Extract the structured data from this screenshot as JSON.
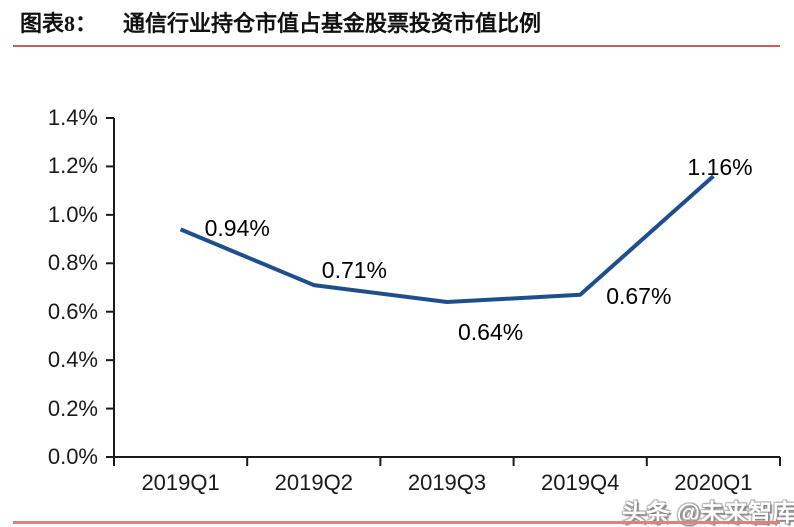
{
  "header": {
    "label": "图表8：",
    "title": "通信行业持仓市值占基金股票投资市值比例",
    "underline_color": "#C4615C"
  },
  "watermark": {
    "text": "头条 @未来智库",
    "color": "#FFFFFF"
  },
  "footer": {
    "bar_color": "#DD837C"
  },
  "chart_data": {
    "type": "line",
    "title": "通信行业持仓市值占基金股票投资市值比例",
    "categories": [
      "2019Q1",
      "2019Q2",
      "2019Q3",
      "2019Q4",
      "2020Q1"
    ],
    "values": [
      0.94,
      0.71,
      0.64,
      0.67,
      1.16
    ],
    "data_labels": [
      "0.94%",
      "0.71%",
      "0.64%",
      "0.67%",
      "1.16%"
    ],
    "series_name": "通信行业持仓市值占基金股票投资市值比例",
    "unit": "%",
    "ylim": [
      0.0,
      1.4
    ],
    "y_ticks": [
      {
        "v": 0.0,
        "label": "0.0%"
      },
      {
        "v": 0.2,
        "label": "0.2%"
      },
      {
        "v": 0.4,
        "label": "0.4%"
      },
      {
        "v": 0.6,
        "label": "0.6%"
      },
      {
        "v": 0.8,
        "label": "0.8%"
      },
      {
        "v": 1.0,
        "label": "1.0%"
      },
      {
        "v": 1.2,
        "label": "1.2%"
      },
      {
        "v": 1.4,
        "label": "1.4%"
      }
    ],
    "grid": false,
    "legend": "none",
    "line_color": "#1F4E8C",
    "axis_color": "#1a1a1a"
  }
}
